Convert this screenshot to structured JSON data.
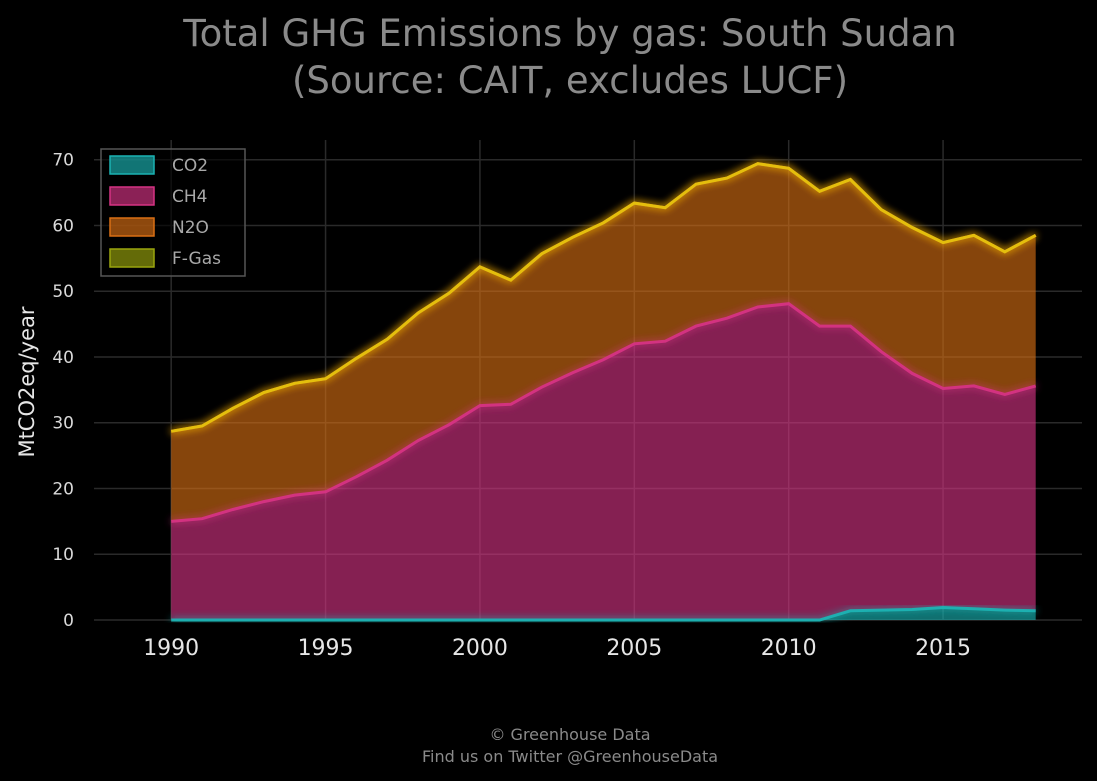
{
  "chart_data": {
    "type": "area",
    "stacked": true,
    "title": "Total GHG Emissions by gas: South Sudan",
    "subtitle": "(Source: CAIT, excludes LUCF)",
    "ylabel": "MtCO2eq/year",
    "xlabel": "",
    "ylim": [
      0,
      73
    ],
    "xlim": [
      1987.5,
      2019.5
    ],
    "yticks": [
      0,
      10,
      20,
      30,
      40,
      50,
      60,
      70
    ],
    "xticks": [
      1990,
      1995,
      2000,
      2005,
      2010,
      2015
    ],
    "grid": true,
    "legend_position": "top-left",
    "x": [
      1990,
      1991,
      1992,
      1993,
      1994,
      1995,
      1996,
      1997,
      1998,
      1999,
      2000,
      2001,
      2002,
      2003,
      2004,
      2005,
      2006,
      2007,
      2008,
      2009,
      2010,
      2011,
      2012,
      2013,
      2014,
      2015,
      2016,
      2017,
      2018
    ],
    "series": [
      {
        "name": "CO2",
        "color": "#1ab3b3",
        "values": [
          0,
          0,
          0,
          0,
          0,
          0,
          0,
          0,
          0,
          0,
          0,
          0,
          0,
          0,
          0,
          0,
          0,
          0,
          0,
          0,
          0,
          0,
          1.4,
          1.5,
          1.6,
          1.9,
          1.7,
          1.5,
          1.4
        ]
      },
      {
        "name": "CH4",
        "color": "#d63384",
        "values": [
          15.0,
          15.4,
          16.8,
          18.0,
          19.0,
          19.5,
          21.8,
          24.3,
          27.3,
          29.7,
          32.6,
          32.8,
          35.4,
          37.6,
          39.6,
          42.0,
          42.4,
          44.7,
          45.9,
          47.6,
          48.1,
          44.7,
          43.3,
          39.3,
          35.9,
          33.3,
          33.9,
          32.8,
          34.2
        ]
      },
      {
        "name": "N2O",
        "color": "#d96f14",
        "values": [
          13.7,
          14.1,
          15.4,
          16.6,
          17.0,
          17.2,
          18.0,
          18.4,
          19.4,
          20.0,
          21.1,
          18.9,
          20.3,
          20.6,
          20.8,
          21.4,
          20.3,
          21.6,
          21.3,
          21.8,
          20.6,
          20.5,
          22.3,
          21.6,
          22.2,
          22.2,
          22.9,
          21.7,
          22.9
        ]
      },
      {
        "name": "F-Gas",
        "color": "#9aa50d",
        "values": [
          0,
          0,
          0,
          0,
          0,
          0,
          0,
          0,
          0,
          0,
          0,
          0,
          0,
          0,
          0,
          0,
          0,
          0,
          0,
          0,
          0,
          0,
          0,
          0,
          0,
          0,
          0,
          0,
          0
        ]
      }
    ]
  },
  "footer": {
    "line1": "© Greenhouse Data",
    "line2": "Find us on Twitter @GreenhouseData"
  }
}
